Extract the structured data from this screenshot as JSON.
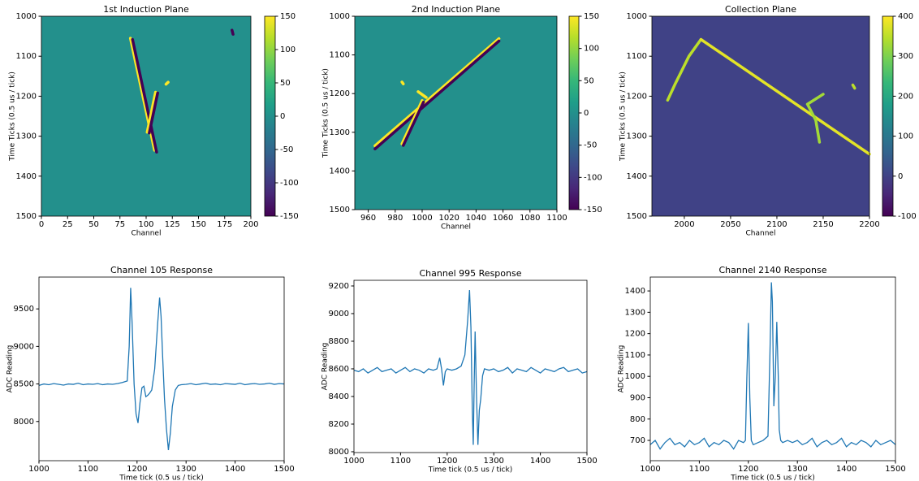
{
  "chart_data": [
    {
      "type": "heatmap",
      "title": "1st Induction Plane",
      "xlabel": "Channel",
      "ylabel": "Time Ticks (0.5 us / tick)",
      "xlim": [
        0,
        200
      ],
      "xticks": [
        0,
        25,
        50,
        75,
        100,
        125,
        150,
        175,
        200
      ],
      "ylim": [
        1500,
        1000
      ],
      "yticks": [
        1000,
        1100,
        1200,
        1300,
        1400,
        1500
      ],
      "clim": [
        -150,
        150
      ],
      "cticks": [
        -150,
        -100,
        -50,
        0,
        50,
        100,
        150
      ],
      "colormap": "viridis",
      "background_value": 0,
      "tracks": [
        {
          "x": [
            85,
            108
          ],
          "y": [
            1055,
            1335
          ],
          "value": 150
        },
        {
          "x": [
            87,
            110
          ],
          "y": [
            1058,
            1340
          ],
          "value": -150
        },
        {
          "x": [
            101,
            109
          ],
          "y": [
            1290,
            1190
          ],
          "value": 150
        },
        {
          "x": [
            103,
            111
          ],
          "y": [
            1292,
            1192
          ],
          "value": -150
        },
        {
          "x": [
            119,
            121
          ],
          "y": [
            1170,
            1165
          ],
          "value": 150
        },
        {
          "x": [
            182,
            183
          ],
          "y": [
            1035,
            1045
          ],
          "value": -150
        }
      ]
    },
    {
      "type": "heatmap",
      "title": "2nd Induction Plane",
      "xlabel": "Channel",
      "ylabel": "Time Ticks (0.5 us / tick)",
      "xlim": [
        950,
        1100
      ],
      "xticks": [
        960,
        980,
        1000,
        1020,
        1040,
        1060,
        1080,
        1100
      ],
      "ylim": [
        1500,
        1000
      ],
      "yticks": [
        1000,
        1100,
        1200,
        1300,
        1400,
        1500
      ],
      "clim": [
        -150,
        150
      ],
      "cticks": [
        -150,
        -100,
        -50,
        0,
        50,
        100,
        150
      ],
      "colormap": "viridis",
      "background_value": 0,
      "tracks": [
        {
          "x": [
            965,
            1057
          ],
          "y": [
            1335,
            1058
          ],
          "value": 150
        },
        {
          "x": [
            965,
            1057
          ],
          "y": [
            1343,
            1064
          ],
          "value": -150
        },
        {
          "x": [
            985,
            1000
          ],
          "y": [
            1330,
            1218
          ],
          "value": 150
        },
        {
          "x": [
            986,
            1001
          ],
          "y": [
            1334,
            1222
          ],
          "value": -150
        },
        {
          "x": [
            985,
            986
          ],
          "y": [
            1170,
            1175
          ],
          "value": 150
        },
        {
          "x": [
            997,
            1003
          ],
          "y": [
            1195,
            1210
          ],
          "value": 150
        }
      ]
    },
    {
      "type": "heatmap",
      "title": "Collection Plane",
      "xlabel": "Channel",
      "ylabel": "Time Ticks (0.5 us / tick)",
      "xlim": [
        1965,
        2200
      ],
      "xticks": [
        2000,
        2050,
        2100,
        2150,
        2200
      ],
      "ylim": [
        1500,
        1000
      ],
      "yticks": [
        1000,
        1100,
        1200,
        1300,
        1400,
        1500
      ],
      "clim": [
        -100,
        400
      ],
      "cticks": [
        -100,
        0,
        100,
        200,
        300,
        400
      ],
      "colormap": "viridis",
      "background_value": 0,
      "tracks": [
        {
          "x": [
            1982,
            1990,
            2005,
            2018
          ],
          "y": [
            1210,
            1170,
            1100,
            1058
          ],
          "value": 350
        },
        {
          "x": [
            2018,
            2200
          ],
          "y": [
            1058,
            1345
          ],
          "value": 380
        },
        {
          "x": [
            2133,
            2142,
            2146
          ],
          "y": [
            1220,
            1260,
            1315
          ],
          "value": 330
        },
        {
          "x": [
            2133,
            2150
          ],
          "y": [
            1220,
            1195
          ],
          "value": 330
        },
        {
          "x": [
            2182,
            2184
          ],
          "y": [
            1172,
            1180
          ],
          "value": 350
        }
      ]
    },
    {
      "type": "line",
      "title": "Channel 105 Response",
      "xlabel": "Time tick (0.5 us / tick)",
      "ylabel": "ADC Reading",
      "xlim": [
        1000,
        1500
      ],
      "xticks": [
        1000,
        1100,
        1200,
        1300,
        1400,
        1500
      ],
      "ylim": [
        7478,
        9924
      ],
      "yticks": [
        8000,
        8500,
        9000,
        9500
      ],
      "color": "#1f77b4",
      "x": [
        1000,
        1010,
        1020,
        1030,
        1040,
        1050,
        1060,
        1070,
        1080,
        1090,
        1100,
        1110,
        1120,
        1130,
        1140,
        1150,
        1160,
        1170,
        1180,
        1184,
        1187,
        1190,
        1194,
        1198,
        1202,
        1206,
        1210,
        1214,
        1218,
        1222,
        1226,
        1230,
        1236,
        1242,
        1246,
        1249,
        1252,
        1256,
        1260,
        1264,
        1268,
        1272,
        1278,
        1284,
        1290,
        1300,
        1310,
        1320,
        1330,
        1340,
        1350,
        1360,
        1370,
        1380,
        1390,
        1400,
        1410,
        1420,
        1430,
        1440,
        1450,
        1460,
        1470,
        1480,
        1490,
        1500
      ],
      "values": [
        8480,
        8500,
        8490,
        8505,
        8495,
        8485,
        8500,
        8495,
        8510,
        8490,
        8500,
        8495,
        8505,
        8490,
        8500,
        8495,
        8505,
        8520,
        8540,
        9000,
        9780,
        9300,
        8500,
        8100,
        7980,
        8250,
        8450,
        8470,
        8330,
        8350,
        8380,
        8420,
        8700,
        9300,
        9650,
        9400,
        8900,
        8300,
        7900,
        7620,
        7850,
        8200,
        8420,
        8480,
        8490,
        8495,
        8505,
        8490,
        8500,
        8510,
        8495,
        8500,
        8490,
        8505,
        8500,
        8495,
        8510,
        8490,
        8500,
        8505,
        8495,
        8500,
        8510,
        8495,
        8505,
        8500
      ]
    },
    {
      "type": "line",
      "title": "Channel 995 Response",
      "xlabel": "Time tick (0.5 us / tick)",
      "ylabel": "ADC Reading",
      "xlim": [
        1000,
        1500
      ],
      "xticks": [
        1000,
        1100,
        1200,
        1300,
        1400,
        1500
      ],
      "ylim": [
        7994,
        9241
      ],
      "yticks": [
        8000,
        8200,
        8400,
        8600,
        8800,
        9000,
        9200
      ],
      "color": "#1f77b4",
      "x": [
        1000,
        1010,
        1020,
        1030,
        1040,
        1050,
        1060,
        1070,
        1080,
        1090,
        1100,
        1110,
        1120,
        1130,
        1140,
        1150,
        1160,
        1170,
        1178,
        1184,
        1188,
        1192,
        1196,
        1200,
        1210,
        1220,
        1230,
        1238,
        1244,
        1248,
        1251,
        1254,
        1256,
        1258,
        1260,
        1263,
        1266,
        1269,
        1272,
        1276,
        1280,
        1290,
        1300,
        1310,
        1320,
        1330,
        1340,
        1350,
        1360,
        1370,
        1380,
        1390,
        1400,
        1410,
        1420,
        1430,
        1440,
        1450,
        1460,
        1470,
        1480,
        1490,
        1500
      ],
      "values": [
        8590,
        8580,
        8600,
        8570,
        8590,
        8610,
        8580,
        8590,
        8600,
        8570,
        8590,
        8610,
        8580,
        8600,
        8590,
        8570,
        8600,
        8590,
        8600,
        8680,
        8600,
        8480,
        8580,
        8600,
        8590,
        8600,
        8620,
        8700,
        8950,
        9170,
        8900,
        8300,
        8050,
        8500,
        8870,
        8400,
        8050,
        8300,
        8380,
        8550,
        8600,
        8590,
        8600,
        8580,
        8590,
        8610,
        8570,
        8600,
        8590,
        8580,
        8610,
        8590,
        8570,
        8600,
        8590,
        8580,
        8600,
        8610,
        8580,
        8590,
        8600,
        8570,
        8580
      ]
    },
    {
      "type": "line",
      "title": "Channel 2140 Response",
      "xlabel": "Time tick (0.5 us / tick)",
      "ylabel": "ADC Reading",
      "xlim": [
        1000,
        1500
      ],
      "xticks": [
        1000,
        1100,
        1200,
        1300,
        1400,
        1500
      ],
      "ylim": [
        605,
        1465
      ],
      "yticks": [
        700,
        800,
        900,
        1000,
        1100,
        1200,
        1300,
        1400
      ],
      "color": "#1f77b4",
      "x": [
        1000,
        1010,
        1020,
        1030,
        1040,
        1050,
        1060,
        1070,
        1080,
        1090,
        1100,
        1110,
        1120,
        1130,
        1140,
        1150,
        1160,
        1170,
        1180,
        1190,
        1194,
        1197,
        1200,
        1203,
        1206,
        1210,
        1220,
        1230,
        1240,
        1244,
        1247,
        1249,
        1252,
        1255,
        1258,
        1261,
        1263,
        1266,
        1270,
        1280,
        1290,
        1300,
        1310,
        1320,
        1330,
        1340,
        1350,
        1360,
        1370,
        1380,
        1390,
        1400,
        1410,
        1420,
        1430,
        1440,
        1450,
        1460,
        1470,
        1480,
        1490,
        1500
      ],
      "values": [
        680,
        700,
        660,
        690,
        710,
        680,
        690,
        670,
        700,
        680,
        690,
        710,
        670,
        690,
        680,
        700,
        690,
        660,
        700,
        690,
        700,
        1000,
        1250,
        900,
        700,
        680,
        690,
        700,
        720,
        1100,
        1440,
        1350,
        860,
        1000,
        1255,
        1000,
        750,
        700,
        690,
        700,
        690,
        700,
        680,
        690,
        710,
        670,
        690,
        700,
        680,
        690,
        710,
        670,
        690,
        680,
        700,
        690,
        670,
        700,
        680,
        690,
        700,
        680
      ]
    }
  ]
}
